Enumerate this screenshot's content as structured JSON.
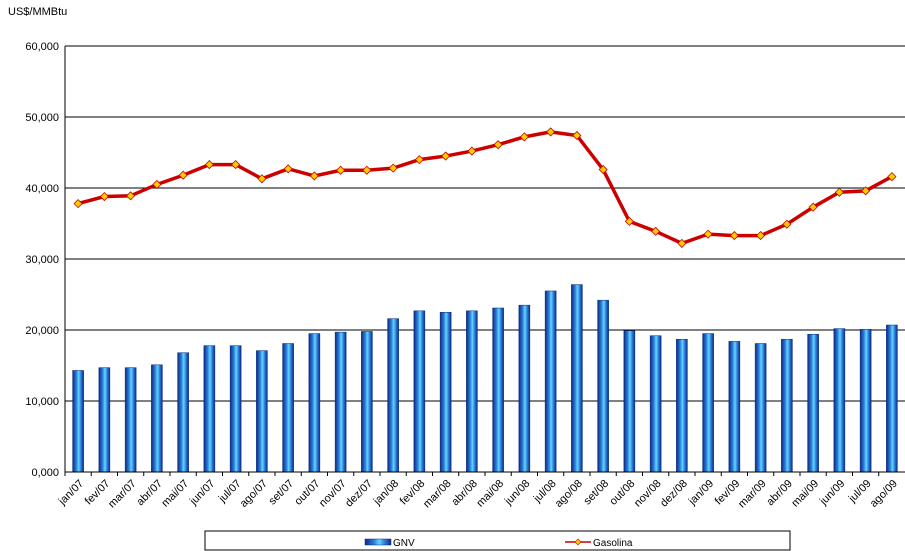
{
  "chart_data": {
    "type": "combo",
    "y_label": "US$/MMBtu",
    "categories": [
      "jan/07",
      "fev/07",
      "mar/07",
      "abr/07",
      "mai/07",
      "jun/07",
      "jul/07",
      "ago/07",
      "set/07",
      "out/07",
      "nov/07",
      "dez/07",
      "jan/08",
      "fev/08",
      "mar/08",
      "abr/08",
      "mai/08",
      "jun/08",
      "jul/08",
      "ago/08",
      "set/08",
      "out/08",
      "nov/08",
      "dez/08",
      "jan/09",
      "fev/09",
      "mar/09",
      "abr/09",
      "mai/09",
      "jun/09",
      "jul/09",
      "ago/09"
    ],
    "series": [
      {
        "name": "GNV",
        "type": "bar",
        "color": "#2f7fe0",
        "values": [
          14300,
          14700,
          14700,
          15100,
          16800,
          17800,
          17800,
          17100,
          18100,
          19500,
          19700,
          19800,
          21600,
          22700,
          22500,
          22700,
          23100,
          23500,
          25500,
          26400,
          24200,
          19900,
          19200,
          18700,
          19500,
          18400,
          18100,
          18700,
          19400,
          20200,
          20100,
          20700
        ]
      },
      {
        "name": "Gasolina",
        "type": "line",
        "color": "#cc0000",
        "marker_color": "#ffcc00",
        "values": [
          37800,
          38800,
          38900,
          40500,
          41800,
          43300,
          43300,
          41300,
          42700,
          41700,
          42500,
          42500,
          42800,
          44000,
          44500,
          45200,
          46100,
          47200,
          47900,
          47400,
          42600,
          35300,
          33900,
          32200,
          33500,
          33300,
          33300,
          34900,
          37300,
          39400,
          39600,
          41600
        ]
      }
    ],
    "ylim": [
      0,
      60000
    ],
    "yticks": [
      {
        "value": 0,
        "label": "0,000"
      },
      {
        "value": 10000,
        "label": "10,000"
      },
      {
        "value": 20000,
        "label": "20,000"
      },
      {
        "value": 30000,
        "label": "30,000"
      },
      {
        "value": 40000,
        "label": "40,000"
      },
      {
        "value": 50000,
        "label": "50,000"
      },
      {
        "value": 60000,
        "label": "60,000"
      }
    ],
    "grid": true,
    "legend": "bottom"
  }
}
